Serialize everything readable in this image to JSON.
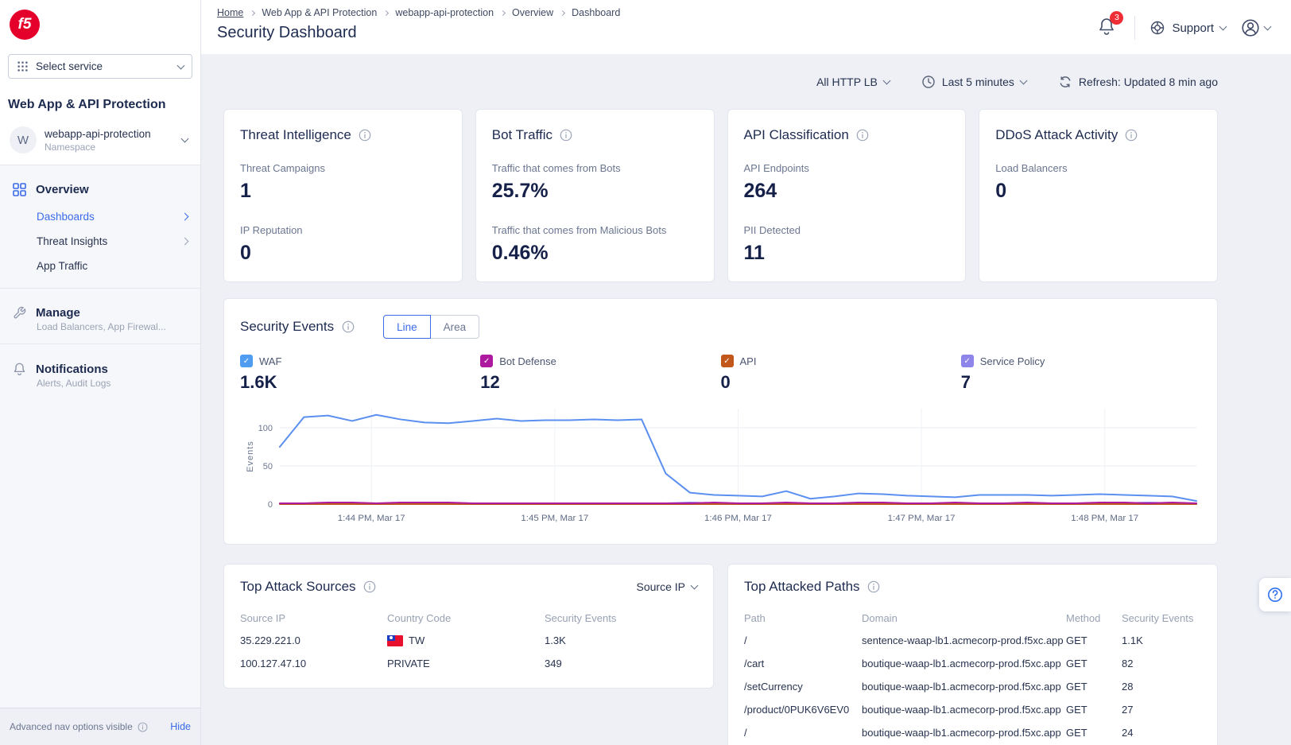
{
  "sidebar": {
    "logo_text": "f5",
    "select_service_label": "Select service",
    "product_title": "Web App & API Protection",
    "namespace": {
      "initial": "W",
      "name": "webapp-api-protection",
      "type_label": "Namespace"
    },
    "nav": {
      "overview_label": "Overview",
      "dashboards_label": "Dashboards",
      "threat_insights_label": "Threat Insights",
      "app_traffic_label": "App Traffic",
      "manage_label": "Manage",
      "manage_sublabel": "Load Balancers, App Firewal...",
      "notifications_label": "Notifications",
      "notifications_sublabel": "Alerts, Audit Logs"
    },
    "footer": {
      "advanced_nav_text": "Advanced nav options visible",
      "hide_label": "Hide"
    }
  },
  "header": {
    "breadcrumb": {
      "home": "Home",
      "level1": "Web App & API Protection",
      "level2": "webapp-api-protection",
      "level3": "Overview",
      "level4": "Dashboard"
    },
    "page_title": "Security Dashboard",
    "notification_badge": "3",
    "support_label": "Support"
  },
  "filters": {
    "lb_selector": "All HTTP LB",
    "time_range": "Last 5 minutes",
    "refresh_status": "Refresh: Updated 8 min ago"
  },
  "stat_cards": [
    {
      "title": "Threat Intelligence",
      "metric1_label": "Threat Campaigns",
      "metric1_value": "1",
      "metric2_label": "IP Reputation",
      "metric2_value": "0"
    },
    {
      "title": "Bot Traffic",
      "metric1_label": "Traffic that comes from Bots",
      "metric1_value": "25.7%",
      "metric2_label": "Traffic that comes from Malicious Bots",
      "metric2_value": "0.46%"
    },
    {
      "title": "API Classification",
      "metric1_label": "API Endpoints",
      "metric1_value": "264",
      "metric2_label": "PII Detected",
      "metric2_value": "11"
    },
    {
      "title": "DDoS Attack Activity",
      "metric1_label": "Load Balancers",
      "metric1_value": "0"
    }
  ],
  "security_events": {
    "title": "Security Events",
    "line_toggle": "Line",
    "area_toggle": "Area",
    "legend": [
      {
        "label": "WAF",
        "value": "1.6K",
        "color": "#4f9cf0",
        "checked": true
      },
      {
        "label": "Bot Defense",
        "value": "12",
        "color": "#ad1aa0",
        "checked": true
      },
      {
        "label": "API",
        "value": "0",
        "color": "#c2571c",
        "checked": true
      },
      {
        "label": "Service Policy",
        "value": "7",
        "color": "#8d85ea",
        "checked": true
      }
    ],
    "chart_data": {
      "type": "line",
      "title": "Security Events",
      "xlabel": "",
      "ylabel": "Events",
      "yticks": [
        0,
        50,
        100
      ],
      "ylim": [
        0,
        125
      ],
      "grid": true,
      "legend_position": "top",
      "x_labels": [
        "1:44 PM, Mar 17",
        "1:45 PM, Mar 17",
        "1:46 PM, Mar 17",
        "1:47 PM, Mar 17",
        "1:48 PM, Mar 17"
      ],
      "series": [
        {
          "name": "WAF",
          "color": "#5b8ff0",
          "values": [
            75,
            114,
            116,
            109,
            117,
            111,
            107,
            106,
            109,
            112,
            109,
            110,
            110,
            111,
            110,
            111,
            40,
            15,
            12,
            11,
            10,
            17,
            7,
            10,
            14,
            13,
            11,
            10,
            9,
            12,
            12,
            12,
            11,
            12,
            13,
            12,
            11,
            10,
            4
          ]
        },
        {
          "name": "Bot Defense",
          "color": "#ad1aa0",
          "values": [
            1,
            1,
            2,
            2,
            1,
            2,
            2,
            2,
            1,
            1,
            1,
            1,
            1,
            1,
            1,
            1,
            1,
            1,
            2,
            1,
            1,
            2,
            1,
            1,
            2,
            2,
            1,
            1,
            2,
            1,
            1,
            2,
            1,
            1,
            2,
            2,
            1,
            2,
            1
          ]
        },
        {
          "name": "API",
          "color": "#c2571c",
          "values": [
            0,
            0,
            0,
            0,
            0,
            0,
            0,
            0,
            0,
            0,
            0,
            0,
            0,
            0,
            0,
            0,
            0,
            0,
            0,
            0,
            0,
            0,
            0,
            0,
            0,
            0,
            0,
            0,
            0,
            0,
            0,
            0,
            0,
            0,
            0,
            0,
            0,
            0,
            0
          ]
        },
        {
          "name": "Service Policy",
          "color": "#8d85ea",
          "values": [
            0,
            0,
            0,
            1,
            1,
            0,
            1,
            1,
            0,
            0,
            0,
            0,
            0,
            0,
            0,
            0,
            1,
            2,
            1,
            0,
            1,
            1,
            0,
            0,
            1,
            0,
            0,
            1,
            1,
            0,
            0,
            1,
            1,
            0,
            0,
            1,
            2,
            1,
            0
          ]
        }
      ]
    }
  },
  "attack_sources": {
    "title": "Top Attack Sources",
    "group_by": "Source IP",
    "headers": [
      "Source IP",
      "Country Code",
      "Security Events"
    ],
    "rows": [
      {
        "source_ip": "35.229.221.0",
        "country_code": "TW",
        "events": "1.3K"
      },
      {
        "source_ip": "100.127.47.10",
        "country_code": "PRIVATE",
        "events": "349"
      }
    ]
  },
  "attacked_paths": {
    "title": "Top Attacked Paths",
    "headers": [
      "Path",
      "Domain",
      "Method",
      "Security Events"
    ],
    "rows": [
      {
        "path": "/",
        "domain": "sentence-waap-lb1.acmecorp-prod.f5xc.app",
        "method": "GET",
        "events": "1.1K"
      },
      {
        "path": "/cart",
        "domain": "boutique-waap-lb1.acmecorp-prod.f5xc.app",
        "method": "GET",
        "events": "82"
      },
      {
        "path": "/setCurrency",
        "domain": "boutique-waap-lb1.acmecorp-prod.f5xc.app",
        "method": "GET",
        "events": "28"
      },
      {
        "path": "/product/0PUK6V6EV0",
        "domain": "boutique-waap-lb1.acmecorp-prod.f5xc.app",
        "method": "GET",
        "events": "27"
      },
      {
        "path": "/",
        "domain": "boutique-waap-lb1.acmecorp-prod.f5xc.app",
        "method": "GET",
        "events": "24"
      }
    ]
  }
}
